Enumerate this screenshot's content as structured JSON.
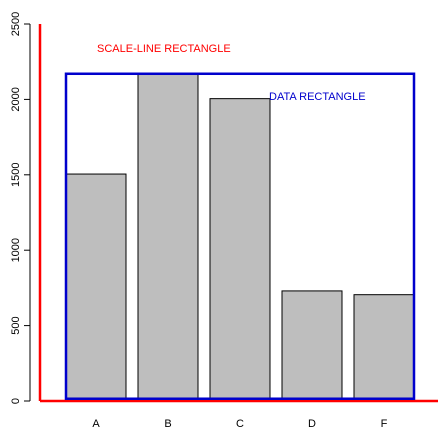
{
  "chart_data": {
    "type": "bar",
    "categories": [
      "A",
      "B",
      "C",
      "D",
      "F"
    ],
    "values": [
      1505,
      2200,
      2005,
      730,
      705
    ],
    "ylim": [
      0,
      2500
    ],
    "yticks": [
      0,
      500,
      1000,
      1500,
      2000,
      2500
    ],
    "ytick_labels": [
      "0",
      "500",
      "1000",
      "1500",
      "2000",
      "2500"
    ],
    "data_rect_ylim": [
      15,
      2170
    ],
    "grid": false,
    "legend": "none",
    "annotations": {
      "scale_line_rectangle": "SCALE-LINE RECTANGLE",
      "data_rectangle": "DATA RECTANGLE"
    },
    "colors": {
      "bar_fill": "#bebebe",
      "bar_stroke": "#000000",
      "scale_line": "#ff0000",
      "data_rect": "#0000cc",
      "axis": "#000000"
    }
  }
}
